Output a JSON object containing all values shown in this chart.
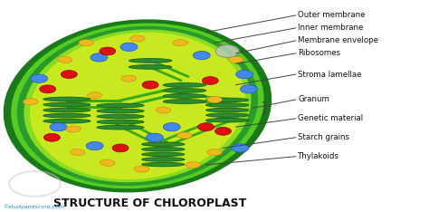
{
  "title": "STRUCTURE OF CHLOROPLAST",
  "title_fontsize": 9,
  "title_color": "#111111",
  "background_color": "#ffffff",
  "watermark": "©studyandscore.com",
  "labels": [
    "Outer membrane",
    "Inner membrane",
    "Membrane envelope",
    "Ribosomes",
    "Stroma lamellae",
    "Granum",
    "Genetic material",
    "Starch grains",
    "Thylakoids"
  ],
  "outer_color": "#1a7a1a",
  "outer2_color": "#2a9a2a",
  "inner_band_color": "#3dba20",
  "stroma_color": "#c8e820",
  "granum_face": "#2e8c2e",
  "granum_edge": "#1a6a1a",
  "lamella_color": "#3aaa1a",
  "ribosome_color": "#4488ee",
  "red_dot_color": "#dd1111",
  "starch_color": "#f0b820",
  "starch_edge": "#cc8800",
  "line_color": "#444444",
  "memenv_color": "#bbccbb"
}
